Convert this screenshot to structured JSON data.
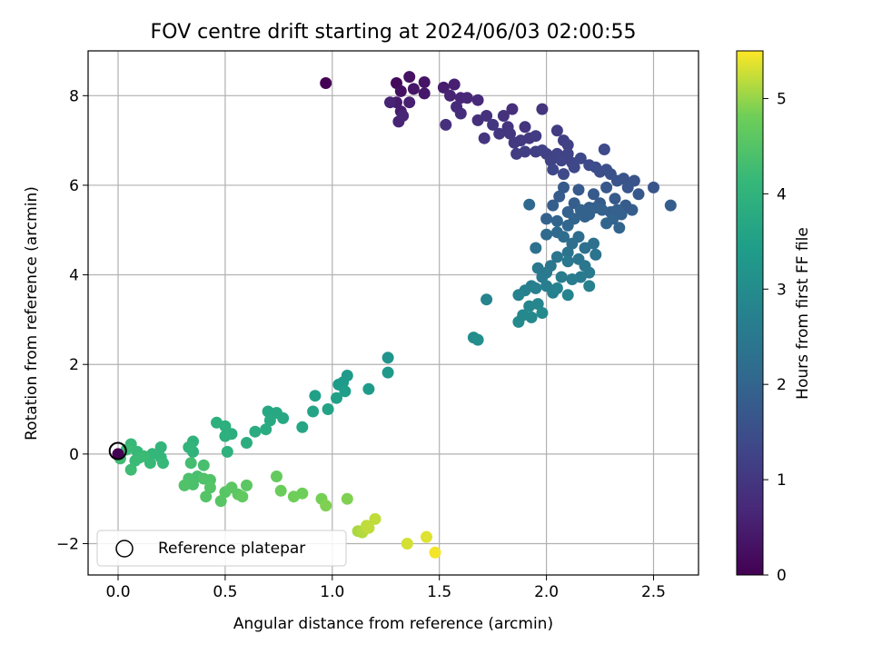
{
  "chart_data": {
    "type": "scatter",
    "title": "FOV centre drift starting at 2024/06/03 02:00:55",
    "xlabel": "Angular distance from reference (arcmin)",
    "ylabel": "Rotation from reference (arcmin)",
    "xlim": [
      -0.14,
      2.71
    ],
    "ylim": [
      -2.7,
      9.0
    ],
    "xticks": [
      "0.0",
      "0.5",
      "1.0",
      "1.5",
      "2.0",
      "2.5"
    ],
    "xtick_values": [
      0.0,
      0.5,
      1.0,
      1.5,
      2.0,
      2.5
    ],
    "yticks": [
      "−2",
      "0",
      "2",
      "4",
      "6",
      "8"
    ],
    "ytick_values": [
      -2,
      0,
      2,
      4,
      6,
      8
    ],
    "grid": true,
    "colormap": "viridis",
    "colorbar": {
      "label": "Hours from first FF file",
      "range": [
        0,
        5.5
      ],
      "ticks": [
        "0",
        "1",
        "2",
        "3",
        "4",
        "5"
      ],
      "tick_values": [
        0,
        1,
        2,
        3,
        4,
        5
      ]
    },
    "legend": {
      "location": "lower-left",
      "entries": [
        "Reference platepar"
      ]
    },
    "reference_point": {
      "x": 0.0,
      "y": 0.0,
      "marker": "open-circle"
    },
    "points": [
      [
        0.97,
        8.28,
        0.0
      ],
      [
        1.3,
        8.28,
        0.15
      ],
      [
        1.32,
        8.1,
        0.25
      ],
      [
        1.36,
        8.42,
        0.3
      ],
      [
        1.43,
        8.3,
        0.35
      ],
      [
        1.43,
        8.05,
        0.4
      ],
      [
        1.3,
        7.85,
        0.45
      ],
      [
        1.32,
        7.65,
        0.5
      ],
      [
        1.36,
        7.85,
        0.55
      ],
      [
        1.38,
        8.15,
        0.38
      ],
      [
        1.27,
        7.85,
        0.6
      ],
      [
        1.31,
        7.42,
        0.62
      ],
      [
        1.33,
        7.55,
        0.65
      ],
      [
        1.52,
        8.18,
        0.5
      ],
      [
        1.57,
        8.25,
        0.55
      ],
      [
        1.55,
        8.0,
        0.6
      ],
      [
        1.6,
        7.95,
        0.65
      ],
      [
        1.63,
        7.95,
        0.7
      ],
      [
        1.58,
        7.75,
        0.75
      ],
      [
        1.6,
        7.6,
        0.8
      ],
      [
        1.53,
        7.35,
        0.85
      ],
      [
        1.68,
        7.9,
        0.75
      ],
      [
        1.68,
        7.45,
        0.85
      ],
      [
        1.72,
        7.55,
        0.9
      ],
      [
        1.71,
        7.05,
        0.95
      ],
      [
        1.75,
        7.35,
        1.0
      ],
      [
        1.78,
        7.15,
        1.0
      ],
      [
        1.8,
        7.55,
        0.9
      ],
      [
        1.84,
        7.7,
        0.85
      ],
      [
        1.82,
        7.3,
        0.95
      ],
      [
        1.83,
        7.15,
        1.0
      ],
      [
        1.85,
        6.95,
        1.05
      ],
      [
        1.88,
        7.0,
        1.05
      ],
      [
        1.86,
        6.7,
        1.1
      ],
      [
        1.9,
        7.3,
        0.95
      ],
      [
        1.92,
        7.05,
        1.05
      ],
      [
        1.95,
        7.1,
        1.1
      ],
      [
        1.98,
        7.7,
        0.95
      ],
      [
        1.9,
        6.75,
        1.15
      ],
      [
        1.95,
        6.75,
        1.15
      ],
      [
        1.98,
        6.78,
        1.2
      ],
      [
        2.0,
        6.7,
        1.2
      ],
      [
        2.05,
        7.22,
        1.1
      ],
      [
        2.08,
        7.0,
        1.15
      ],
      [
        2.1,
        6.9,
        1.2
      ],
      [
        2.02,
        6.55,
        1.25
      ],
      [
        2.05,
        6.7,
        1.25
      ],
      [
        2.07,
        6.55,
        1.3
      ],
      [
        2.1,
        6.7,
        1.25
      ],
      [
        2.12,
        6.5,
        1.3
      ],
      [
        2.13,
        6.4,
        1.35
      ],
      [
        2.03,
        6.35,
        1.35
      ],
      [
        2.08,
        6.25,
        1.4
      ],
      [
        2.16,
        6.6,
        1.35
      ],
      [
        2.2,
        6.45,
        1.4
      ],
      [
        2.23,
        6.4,
        1.45
      ],
      [
        2.25,
        6.3,
        1.5
      ],
      [
        2.27,
        6.8,
        1.4
      ],
      [
        2.28,
        6.35,
        1.5
      ],
      [
        2.3,
        6.25,
        1.55
      ],
      [
        2.33,
        6.1,
        1.6
      ],
      [
        2.36,
        6.15,
        1.6
      ],
      [
        2.38,
        5.95,
        1.65
      ],
      [
        2.41,
        6.1,
        1.6
      ],
      [
        2.43,
        5.8,
        1.7
      ],
      [
        2.5,
        5.95,
        1.65
      ],
      [
        2.58,
        5.55,
        1.85
      ],
      [
        2.4,
        5.45,
        1.85
      ],
      [
        2.37,
        5.55,
        1.8
      ],
      [
        2.35,
        5.35,
        1.9
      ],
      [
        2.34,
        5.05,
        2.0
      ],
      [
        2.32,
        5.7,
        1.75
      ],
      [
        2.3,
        5.4,
        1.85
      ],
      [
        2.28,
        5.95,
        1.7
      ],
      [
        2.25,
        5.6,
        1.8
      ],
      [
        2.22,
        5.8,
        1.75
      ],
      [
        2.2,
        5.5,
        1.85
      ],
      [
        2.18,
        5.3,
        1.9
      ],
      [
        2.15,
        5.9,
        1.75
      ],
      [
        2.13,
        5.6,
        1.85
      ],
      [
        2.1,
        5.4,
        1.9
      ],
      [
        2.08,
        5.95,
        1.75
      ],
      [
        2.06,
        5.75,
        1.8
      ],
      [
        2.03,
        5.55,
        1.85
      ],
      [
        2.0,
        5.25,
        1.95
      ],
      [
        2.05,
        5.2,
        2.0
      ],
      [
        2.1,
        5.1,
        2.05
      ],
      [
        2.13,
        5.25,
        2.0
      ],
      [
        2.16,
        5.45,
        1.95
      ],
      [
        2.2,
        5.35,
        1.95
      ],
      [
        2.23,
        5.5,
        1.9
      ],
      [
        2.26,
        5.45,
        1.92
      ],
      [
        2.28,
        5.15,
        2.0
      ],
      [
        2.31,
        5.25,
        1.98
      ],
      [
        2.33,
        5.45,
        1.9
      ],
      [
        1.92,
        5.57,
        2.1
      ],
      [
        2.05,
        4.95,
        2.1
      ],
      [
        2.0,
        4.9,
        2.15
      ],
      [
        2.08,
        4.85,
        2.2
      ],
      [
        2.12,
        4.7,
        2.25
      ],
      [
        2.15,
        4.85,
        2.2
      ],
      [
        2.18,
        4.6,
        2.3
      ],
      [
        2.22,
        4.7,
        2.3
      ],
      [
        2.23,
        4.45,
        2.35
      ],
      [
        2.1,
        4.5,
        2.35
      ],
      [
        2.05,
        4.4,
        2.4
      ],
      [
        2.1,
        4.3,
        2.45
      ],
      [
        2.02,
        4.2,
        2.45
      ],
      [
        2.0,
        4.05,
        2.5
      ],
      [
        2.15,
        4.35,
        2.4
      ],
      [
        2.18,
        4.2,
        2.45
      ],
      [
        2.2,
        4.05,
        2.5
      ],
      [
        2.16,
        3.95,
        2.55
      ],
      [
        2.12,
        3.9,
        2.6
      ],
      [
        2.07,
        3.95,
        2.6
      ],
      [
        1.95,
        4.6,
        2.3
      ],
      [
        1.96,
        4.15,
        2.5
      ],
      [
        1.98,
        3.95,
        2.55
      ],
      [
        1.93,
        3.75,
        2.65
      ],
      [
        1.9,
        3.65,
        2.7
      ],
      [
        1.95,
        3.7,
        2.7
      ],
      [
        2.0,
        3.75,
        2.65
      ],
      [
        2.03,
        3.6,
        2.7
      ],
      [
        2.05,
        3.7,
        2.75
      ],
      [
        2.1,
        3.55,
        2.8
      ],
      [
        2.2,
        3.75,
        2.7
      ],
      [
        1.87,
        3.55,
        2.75
      ],
      [
        1.92,
        3.3,
        2.85
      ],
      [
        1.96,
        3.35,
        2.85
      ],
      [
        1.93,
        3.05,
        2.9
      ],
      [
        1.98,
        3.15,
        2.95
      ],
      [
        1.87,
        2.95,
        2.95
      ],
      [
        1.89,
        3.1,
        2.9
      ],
      [
        1.72,
        3.45,
        2.8
      ],
      [
        1.66,
        2.6,
        3.0
      ],
      [
        1.68,
        2.55,
        3.05
      ],
      [
        1.26,
        2.15,
        3.2
      ],
      [
        1.26,
        1.82,
        3.3
      ],
      [
        1.17,
        1.45,
        3.4
      ],
      [
        1.07,
        1.75,
        3.35
      ],
      [
        1.05,
        1.6,
        3.35
      ],
      [
        1.03,
        1.55,
        3.4
      ],
      [
        1.06,
        1.4,
        3.45
      ],
      [
        1.02,
        1.25,
        3.5
      ],
      [
        0.98,
        1.0,
        3.55
      ],
      [
        0.92,
        1.3,
        3.5
      ],
      [
        0.91,
        0.95,
        3.6
      ],
      [
        0.86,
        0.6,
        3.65
      ],
      [
        0.77,
        0.8,
        3.7
      ],
      [
        0.74,
        0.92,
        3.7
      ],
      [
        0.7,
        0.95,
        3.7
      ],
      [
        0.71,
        0.75,
        3.75
      ],
      [
        0.69,
        0.55,
        3.8
      ],
      [
        0.64,
        0.5,
        3.8
      ],
      [
        0.6,
        0.25,
        3.85
      ],
      [
        0.53,
        0.45,
        3.85
      ],
      [
        0.5,
        0.4,
        3.9
      ],
      [
        0.5,
        0.62,
        3.9
      ],
      [
        0.46,
        0.7,
        3.9
      ],
      [
        0.51,
        0.05,
        3.95
      ],
      [
        0.35,
        0.28,
        4.0
      ],
      [
        0.35,
        0.05,
        4.0
      ],
      [
        0.33,
        0.15,
        4.05
      ],
      [
        0.2,
        0.15,
        4.05
      ],
      [
        0.16,
        0.0,
        4.1
      ],
      [
        0.2,
        -0.08,
        4.1
      ],
      [
        0.15,
        -0.2,
        4.15
      ],
      [
        0.21,
        -0.2,
        4.15
      ],
      [
        0.09,
        0.05,
        4.15
      ],
      [
        0.1,
        -0.08,
        4.2
      ],
      [
        0.08,
        -0.15,
        4.2
      ],
      [
        0.06,
        0.22,
        4.15
      ],
      [
        0.06,
        -0.35,
        4.25
      ],
      [
        0.04,
        0.1,
        4.2
      ],
      [
        0.01,
        -0.1,
        4.25
      ],
      [
        0.12,
        -0.05,
        4.2
      ],
      [
        0.34,
        -0.2,
        4.3
      ],
      [
        0.4,
        -0.25,
        4.35
      ],
      [
        0.37,
        -0.5,
        4.35
      ],
      [
        0.33,
        -0.55,
        4.4
      ],
      [
        0.35,
        -0.68,
        4.4
      ],
      [
        0.31,
        -0.7,
        4.45
      ],
      [
        0.4,
        -0.55,
        4.45
      ],
      [
        0.43,
        -0.58,
        4.45
      ],
      [
        0.43,
        -0.75,
        4.5
      ],
      [
        0.41,
        -0.95,
        4.5
      ],
      [
        0.5,
        -0.85,
        4.55
      ],
      [
        0.48,
        -1.05,
        4.55
      ],
      [
        0.53,
        -0.75,
        4.6
      ],
      [
        0.56,
        -0.9,
        4.6
      ],
      [
        0.6,
        -0.7,
        4.6
      ],
      [
        0.58,
        -0.95,
        4.65
      ],
      [
        0.74,
        -0.5,
        4.7
      ],
      [
        0.76,
        -0.82,
        4.75
      ],
      [
        0.82,
        -0.95,
        4.8
      ],
      [
        0.86,
        -0.88,
        4.8
      ],
      [
        0.95,
        -1.0,
        4.85
      ],
      [
        0.97,
        -1.15,
        4.9
      ],
      [
        1.07,
        -1.0,
        4.9
      ],
      [
        1.12,
        -1.72,
        5.1
      ],
      [
        1.14,
        -1.75,
        5.15
      ],
      [
        1.17,
        -1.65,
        5.2
      ],
      [
        1.16,
        -1.6,
        5.2
      ],
      [
        1.2,
        -1.45,
        5.2
      ],
      [
        1.35,
        -2.0,
        5.3
      ],
      [
        1.44,
        -1.85,
        5.35
      ],
      [
        1.48,
        -2.2,
        5.45
      ]
    ]
  }
}
